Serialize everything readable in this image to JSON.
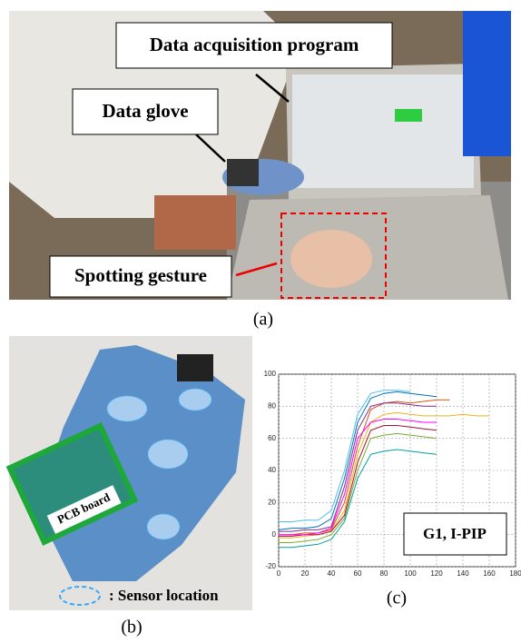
{
  "panel_a": {
    "labels": [
      "Data acquisition program",
      "Data glove",
      "Spotting gesture"
    ],
    "caption": "(a)"
  },
  "panel_b": {
    "board_label": "PCB board",
    "legend": ": Sensor location",
    "caption": "(b)"
  },
  "chart_data": {
    "type": "line",
    "annotation": "G1, I-PIP",
    "caption": "(c)",
    "x": [
      0,
      10,
      20,
      30,
      40,
      50,
      60,
      70,
      80,
      90,
      100,
      110,
      120,
      130,
      140,
      150,
      160
    ],
    "series": [
      {
        "color": "#0072bd",
        "values": [
          3,
          4,
          4,
          5,
          10,
          35,
          70,
          85,
          88,
          89,
          88,
          87,
          86,
          null,
          null,
          null,
          null
        ]
      },
      {
        "color": "#d95319",
        "values": [
          0,
          0,
          1,
          1,
          3,
          20,
          55,
          78,
          82,
          83,
          82,
          83,
          84,
          84,
          null,
          null,
          null
        ]
      },
      {
        "color": "#edb120",
        "values": [
          -2,
          -2,
          -1,
          0,
          2,
          15,
          50,
          70,
          75,
          76,
          75,
          74,
          74,
          74,
          75,
          74,
          74
        ]
      },
      {
        "color": "#7e2f8e",
        "values": [
          2,
          2,
          3,
          3,
          5,
          30,
          65,
          80,
          82,
          82,
          81,
          80,
          80,
          null,
          null,
          null,
          null
        ]
      },
      {
        "color": "#77ac30",
        "values": [
          -5,
          -5,
          -4,
          -3,
          0,
          10,
          40,
          60,
          62,
          63,
          62,
          61,
          60,
          null,
          null,
          null,
          null
        ]
      },
      {
        "color": "#4dbeee",
        "values": [
          8,
          8,
          9,
          9,
          15,
          40,
          75,
          88,
          90,
          90,
          89,
          null,
          null,
          null,
          null,
          null,
          null
        ]
      },
      {
        "color": "#a2142f",
        "values": [
          -1,
          -1,
          0,
          0,
          2,
          12,
          45,
          65,
          68,
          68,
          67,
          66,
          65,
          null,
          null,
          null,
          null
        ]
      },
      {
        "color": "#00a0a0",
        "values": [
          -8,
          -8,
          -7,
          -6,
          -3,
          8,
          35,
          50,
          52,
          53,
          52,
          51,
          50,
          null,
          null,
          null,
          null
        ]
      },
      {
        "color": "#ff00ff",
        "values": [
          0,
          0,
          0,
          1,
          4,
          25,
          60,
          70,
          72,
          72,
          71,
          70,
          70,
          null,
          null,
          null,
          null
        ]
      }
    ],
    "xlim": [
      0,
      180
    ],
    "xticks": [
      0,
      20,
      40,
      60,
      80,
      100,
      120,
      140,
      160,
      180
    ],
    "ylim": [
      -20,
      100
    ],
    "yticks": [
      -20,
      0,
      20,
      40,
      60,
      80,
      100
    ],
    "grid": true
  }
}
